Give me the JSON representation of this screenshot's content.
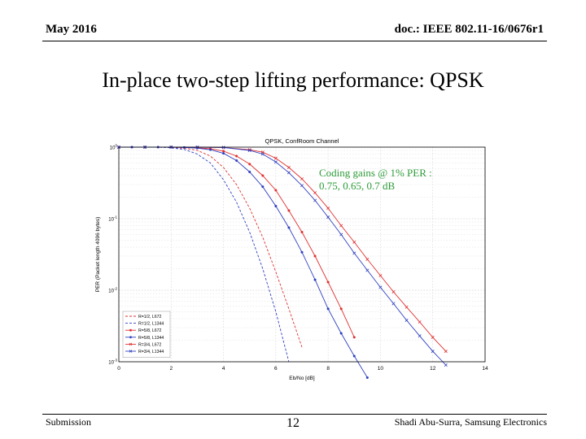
{
  "header": {
    "date": "May 2016",
    "doc_id": "doc.: IEEE 802.11-16/0676r1"
  },
  "slide": {
    "title": "In-place two-step lifting performance: QPSK"
  },
  "annotation": {
    "line1": "Coding gains @ 1% PER :",
    "line2": "0.75, 0.65, 0.7 dB"
  },
  "footer": {
    "left": "Submission",
    "page": "12",
    "right": "Shadi Abu-Surra, Samsung Electronics"
  },
  "chart_data": {
    "type": "line",
    "title": "QPSK, ConfRoom Channel",
    "xlabel": "Eb/No [dB]",
    "ylabel": "PER (Packet length 4096 bytes)",
    "xlim": [
      0,
      14
    ],
    "ylim": [
      0.001,
      1
    ],
    "yscale": "log",
    "xticks": [
      "0",
      "2",
      "4",
      "6",
      "8",
      "10",
      "12",
      "14"
    ],
    "yticks": [
      "10^0",
      "10^-1",
      "10^-2",
      "10^-3"
    ],
    "grid": true,
    "legend_position": "bottom-left",
    "series": [
      {
        "name": "R=1/2, L672",
        "color": "#e03030",
        "style": "dashed",
        "marker": "none",
        "x": [
          0,
          1,
          1.5,
          2,
          2.5,
          3,
          3.5,
          4,
          4.5,
          5,
          5.5,
          6,
          6.5,
          7
        ],
        "y": [
          1,
          1,
          1,
          0.99,
          0.97,
          0.9,
          0.75,
          0.52,
          0.3,
          0.14,
          0.055,
          0.018,
          0.0055,
          0.0016
        ]
      },
      {
        "name": "R=1/2, L1344",
        "color": "#3040c0",
        "style": "dashed",
        "marker": "none",
        "x": [
          0,
          1,
          1.5,
          2,
          2.5,
          3,
          3.5,
          4,
          4.5,
          5,
          5.5,
          6,
          6.5
        ],
        "y": [
          1,
          1,
          1,
          0.98,
          0.93,
          0.8,
          0.6,
          0.35,
          0.17,
          0.065,
          0.02,
          0.005,
          0.001
        ]
      },
      {
        "name": "R=5/8, L672",
        "color": "#e03030",
        "style": "solid",
        "marker": "dot",
        "x": [
          0,
          0.5,
          1,
          1.5,
          2,
          2.5,
          3,
          3.5,
          4,
          4.5,
          5,
          5.5,
          6,
          6.5,
          7,
          7.5,
          8,
          8.5,
          9
        ],
        "y": [
          1,
          1,
          1,
          1,
          1,
          0.99,
          0.98,
          0.95,
          0.88,
          0.75,
          0.58,
          0.4,
          0.25,
          0.13,
          0.065,
          0.03,
          0.013,
          0.0055,
          0.0022
        ]
      },
      {
        "name": "R=5/8, L1344",
        "color": "#3040c0",
        "style": "solid",
        "marker": "dot",
        "x": [
          0,
          0.5,
          1,
          1.5,
          2,
          2.5,
          3,
          3.5,
          4,
          4.5,
          5,
          5.5,
          6,
          6.5,
          7,
          7.5,
          8,
          8.5,
          9,
          9.5
        ],
        "y": [
          1,
          1,
          1,
          1,
          1,
          0.99,
          0.97,
          0.92,
          0.82,
          0.65,
          0.45,
          0.28,
          0.15,
          0.075,
          0.034,
          0.014,
          0.0055,
          0.0025,
          0.0012,
          0.0006
        ]
      },
      {
        "name": "R=3/4, L672",
        "color": "#e03030",
        "style": "solid",
        "marker": "x",
        "x": [
          0,
          1,
          2,
          3,
          4,
          5,
          5.5,
          6,
          6.5,
          7,
          7.5,
          8,
          8.5,
          9,
          9.5,
          10,
          10.5,
          11,
          11.5,
          12,
          12.5
        ],
        "y": [
          1,
          1,
          1,
          1,
          0.99,
          0.92,
          0.85,
          0.7,
          0.52,
          0.36,
          0.23,
          0.14,
          0.08,
          0.047,
          0.027,
          0.016,
          0.0095,
          0.0058,
          0.0036,
          0.0022,
          0.0014
        ]
      },
      {
        "name": "R=3/4, L1344",
        "color": "#3040c0",
        "style": "solid",
        "marker": "x",
        "x": [
          0,
          1,
          2,
          3,
          4,
          5,
          5.5,
          6,
          6.5,
          7,
          7.5,
          8,
          8.5,
          9,
          9.5,
          10,
          10.5,
          11,
          11.5,
          12,
          12.5
        ],
        "y": [
          1,
          1,
          1,
          1,
          0.99,
          0.9,
          0.8,
          0.62,
          0.44,
          0.29,
          0.18,
          0.105,
          0.06,
          0.033,
          0.019,
          0.011,
          0.0065,
          0.0038,
          0.0023,
          0.0014,
          0.0009
        ]
      }
    ]
  }
}
